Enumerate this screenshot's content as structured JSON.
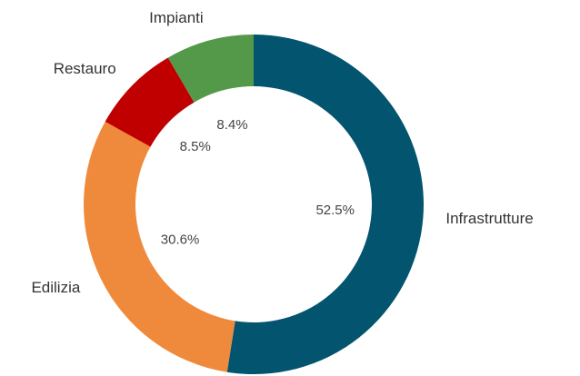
{
  "chart_data": {
    "type": "donut",
    "categories": [
      "Infrastrutture",
      "Edilizia",
      "Restauro",
      "Impianti"
    ],
    "values": [
      52.5,
      30.6,
      8.5,
      8.4
    ],
    "value_labels": [
      "52.5%",
      "30.6%",
      "8.5%",
      "8.4%"
    ],
    "colors": [
      "#02546f",
      "#ef8a3c",
      "#c00000",
      "#54994a"
    ]
  }
}
